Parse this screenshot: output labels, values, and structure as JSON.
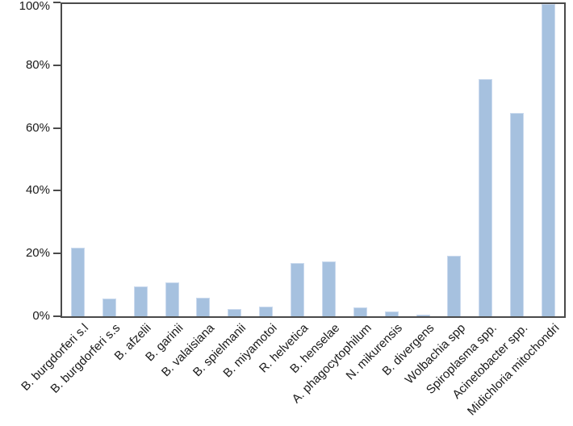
{
  "chart_data": {
    "type": "bar",
    "title": "",
    "xlabel": "",
    "ylabel": "",
    "categories": [
      "B. burgdorferi s.l",
      "B. burgdorferi s.s",
      "B. afzelii",
      "B. garinii",
      "B. valaisiana",
      "B. spielmanii",
      "B. miyamotoi",
      "R. helvetica",
      "B. henselae",
      "A. phagocytophilum",
      "N. mikurensis",
      "B. divergens",
      "Wolbachia spp",
      "Spiroplasma spp.",
      "Acinetobacter spp.",
      "Midichloria mitochondri"
    ],
    "values": [
      22,
      5.8,
      9.6,
      10.9,
      6,
      2.4,
      3.1,
      17,
      17.7,
      2.8,
      1.5,
      0.4,
      19.3,
      76,
      65,
      100
    ],
    "ylim": [
      0,
      100
    ],
    "yticks": [
      "0%",
      "20%",
      "40%",
      "60%",
      "80%",
      "100%"
    ],
    "ytick_step_percent": 20,
    "grid": false,
    "legend": false,
    "x_label_rotation_deg": 45,
    "colors": {
      "bar_fill": "#a6c1df",
      "bar_border": "#cbdaee",
      "axis": "#4a4a4a",
      "text": "#1a1a1a",
      "background": "#ffffff"
    }
  }
}
